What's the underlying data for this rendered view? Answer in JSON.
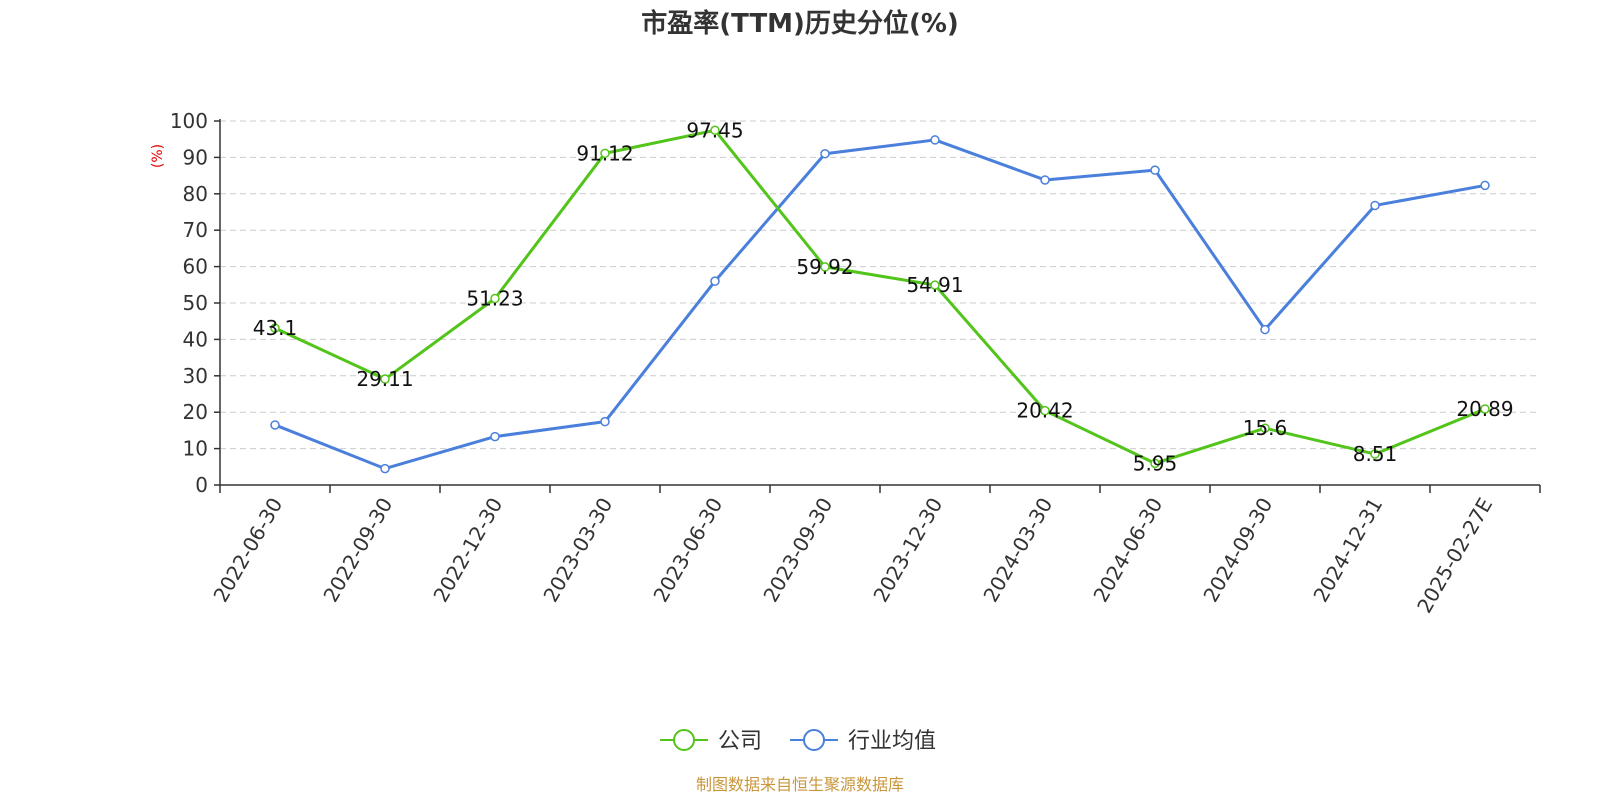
{
  "chart_data": {
    "type": "line",
    "title": "市盈率(TTM)历史分位(%)",
    "ylabel": "(%)",
    "xlabel": "",
    "ylim": [
      0,
      100
    ],
    "yticks": [
      0,
      10,
      20,
      30,
      40,
      50,
      60,
      70,
      80,
      90,
      100
    ],
    "grid": true,
    "legend_position": "bottom-center",
    "categories": [
      "2022-06-30",
      "2022-09-30",
      "2022-12-30",
      "2023-03-30",
      "2023-06-30",
      "2023-09-30",
      "2023-12-30",
      "2024-03-30",
      "2024-06-30",
      "2024-09-30",
      "2024-12-31",
      "2025-02-27E"
    ],
    "series": [
      {
        "name": "公司",
        "color": "#52c41a",
        "show_labels": true,
        "values": [
          43.1,
          29.11,
          51.23,
          91.12,
          97.45,
          59.92,
          54.91,
          20.42,
          5.95,
          15.6,
          8.51,
          20.89
        ]
      },
      {
        "name": "行业均值",
        "color": "#4a7fdc",
        "show_labels": false,
        "values": [
          16.5,
          4.5,
          13.3,
          17.4,
          56.0,
          91.0,
          94.8,
          83.8,
          86.5,
          42.7,
          76.8,
          82.3
        ]
      }
    ]
  },
  "source": "制图数据来自恒生聚源数据库"
}
